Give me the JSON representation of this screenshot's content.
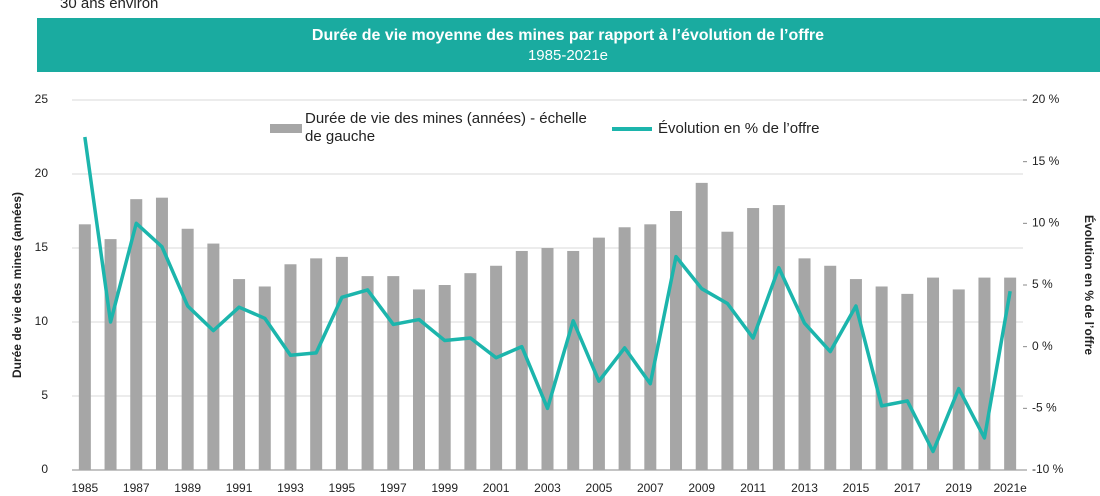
{
  "note_text": "30 ans environ",
  "chart_data": {
    "type": "bar_line",
    "title": "Durée de vie moyenne des mines par rapport à l’évolution de l’offre",
    "subtitle": "1985-2021e",
    "y_label": "Durée de vie des mines (années)",
    "y2_label": "Évolution en % de l’offre",
    "categories": [
      "1985",
      null,
      "1987",
      null,
      "1989",
      null,
      "1991",
      null,
      "1993",
      null,
      "1995",
      null,
      "1997",
      null,
      "1999",
      null,
      "2001",
      null,
      "2003",
      null,
      "2005",
      null,
      "2007",
      null,
      "2009",
      null,
      "2011",
      null,
      "2013",
      null,
      "2015",
      null,
      "2017",
      null,
      "2019",
      null,
      "2021e"
    ],
    "series": [
      {
        "name": "Durée de vie des mines (années) - échelle de gauche",
        "color": "#a6a6a6",
        "kind": "bar",
        "axis": "y",
        "values": [
          16.6,
          15.6,
          18.3,
          18.4,
          16.3,
          15.3,
          12.9,
          12.4,
          13.9,
          14.3,
          14.4,
          13.1,
          13.1,
          12.2,
          12.5,
          13.3,
          13.8,
          14.8,
          15.0,
          14.8,
          15.7,
          16.4,
          16.6,
          17.5,
          19.4,
          16.1,
          17.7,
          17.9,
          14.3,
          13.8,
          12.9,
          12.4,
          11.9,
          13.0,
          12.2,
          13.0,
          13.0
        ]
      },
      {
        "name": "Évolution en % de l’offre",
        "color": "#1cb5ac",
        "kind": "line",
        "axis": "y2",
        "values": [
          17.0,
          2.0,
          10.0,
          8.1,
          3.3,
          1.3,
          3.2,
          2.3,
          -0.7,
          -0.5,
          4.0,
          4.6,
          1.8,
          2.2,
          0.5,
          0.7,
          -0.9,
          0.0,
          -5.0,
          2.1,
          -2.8,
          -0.1,
          -3.0,
          7.3,
          4.7,
          3.5,
          0.7,
          6.4,
          1.9,
          -0.4,
          3.3,
          -4.8,
          -4.4,
          -8.5,
          -3.4,
          -7.4,
          4.5
        ]
      }
    ],
    "ylim": [
      0,
      25
    ],
    "yticks": [
      0,
      5,
      10,
      15,
      20,
      25
    ],
    "y2lim": [
      -10,
      20
    ],
    "y2ticks": [
      {
        "value": -10,
        "label": "-10 %"
      },
      {
        "value": -5,
        "label": "-5 %"
      },
      {
        "value": 0,
        "label": "0 %"
      },
      {
        "value": 5,
        "label": "5 %"
      },
      {
        "value": 10,
        "label": "10 %"
      },
      {
        "value": 15,
        "label": "15 %"
      },
      {
        "value": 20,
        "label": "20 %"
      }
    ],
    "grid": true,
    "title_color": "#1aaba0"
  }
}
